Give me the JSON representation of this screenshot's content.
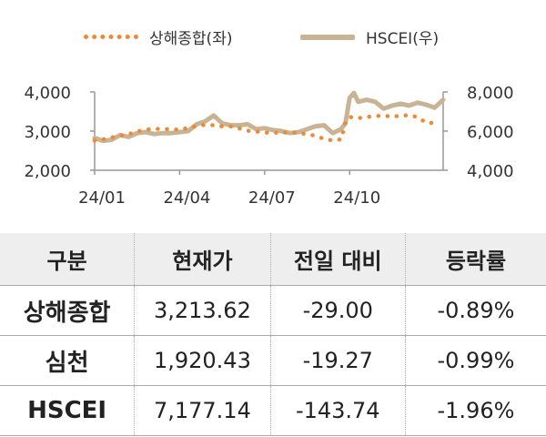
{
  "chart_data": {
    "type": "line",
    "legend": [
      {
        "name": "상해종합(좌)",
        "style": "dotted",
        "color": "#f0892f"
      },
      {
        "name": "HSCEI(우)",
        "style": "solid",
        "color": "#c8b494"
      }
    ],
    "x_ticks": [
      "24/01",
      "24/04",
      "24/07",
      "24/10"
    ],
    "y_left": {
      "min": 2000,
      "max": 4000,
      "ticks": [
        "2,000",
        "3,000",
        "4,000"
      ]
    },
    "y_right": {
      "min": 4000,
      "max": 8000,
      "ticks": [
        "4,000",
        "6,000",
        "8,000"
      ]
    },
    "x_range": [
      0,
      12.3
    ],
    "series": [
      {
        "name": "상해종합(좌)",
        "axis": "left",
        "x": [
          0,
          0.3,
          0.6,
          0.9,
          1.2,
          1.5,
          1.8,
          2.1,
          2.4,
          2.7,
          3.0,
          3.3,
          3.6,
          3.9,
          4.2,
          4.5,
          4.8,
          5.1,
          5.4,
          5.7,
          6.0,
          6.3,
          6.6,
          6.9,
          7.2,
          7.5,
          7.8,
          8.1,
          8.4,
          8.7,
          8.85,
          9.0,
          9.3,
          9.6,
          9.9,
          10.2,
          10.5,
          10.8,
          11.1,
          11.4,
          11.7,
          12.0
        ],
        "values": [
          2760,
          2790,
          2840,
          2880,
          2920,
          2990,
          3040,
          3050,
          3060,
          3040,
          3040,
          3080,
          3130,
          3160,
          3150,
          3120,
          3120,
          3070,
          3010,
          2990,
          2960,
          2960,
          2960,
          2970,
          2950,
          2920,
          2880,
          2800,
          2760,
          2790,
          3230,
          3360,
          3330,
          3360,
          3380,
          3400,
          3360,
          3400,
          3400,
          3360,
          3210,
          3210
        ]
      },
      {
        "name": "HSCEI(우)",
        "axis": "right",
        "x": [
          0,
          0.3,
          0.6,
          0.9,
          1.2,
          1.5,
          1.8,
          2.1,
          2.4,
          2.7,
          3.0,
          3.3,
          3.6,
          3.9,
          4.2,
          4.5,
          4.8,
          5.1,
          5.4,
          5.7,
          6.0,
          6.3,
          6.6,
          6.9,
          7.2,
          7.5,
          7.8,
          8.1,
          8.4,
          8.7,
          8.85,
          9.0,
          9.15,
          9.3,
          9.6,
          9.9,
          10.2,
          10.5,
          10.8,
          11.1,
          11.4,
          11.7,
          12.0,
          12.3
        ],
        "values": [
          5650,
          5500,
          5560,
          5800,
          5700,
          5900,
          5950,
          5850,
          5900,
          5900,
          5950,
          6000,
          6350,
          6500,
          6800,
          6400,
          6300,
          6300,
          6350,
          6100,
          6150,
          6050,
          6000,
          5900,
          5950,
          6100,
          6250,
          6300,
          5900,
          6100,
          6400,
          7700,
          7950,
          7500,
          7600,
          7500,
          7150,
          7300,
          7400,
          7300,
          7450,
          7350,
          7200,
          7600
        ]
      }
    ]
  },
  "table": {
    "headers": [
      "구분",
      "현재가",
      "전일 대비",
      "등락률"
    ],
    "rows": [
      {
        "name": "상해종합",
        "price": "3,213.62",
        "change": "-29.00",
        "rate": "-0.89%"
      },
      {
        "name": "심천",
        "price": "1,920.43",
        "change": "-19.27",
        "rate": "-0.99%"
      },
      {
        "name": "HSCEI",
        "price": "7,177.14",
        "change": "-143.74",
        "rate": "-1.96%"
      }
    ]
  }
}
